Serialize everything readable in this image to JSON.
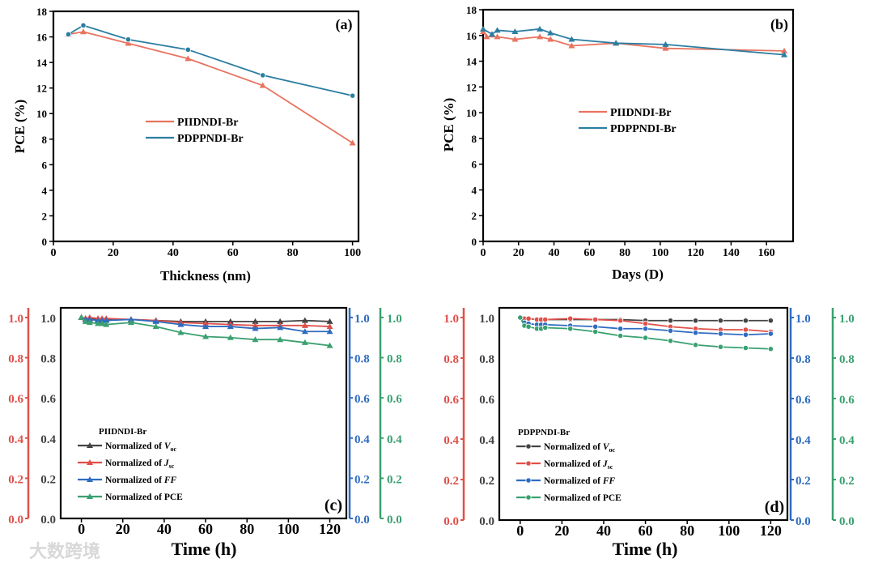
{
  "watermark": "大数跨境",
  "colors": {
    "pii_ab": "#e8735f",
    "pdpp_ab": "#2b7ea1",
    "voc": "#444444",
    "jsc": "#e0504a",
    "ff": "#2f6cc0",
    "pce": "#3aa070",
    "axis": "#000000"
  },
  "chart_data": [
    {
      "type": "line",
      "panel_label": "(a)",
      "xlabel": "Thickness (nm)",
      "ylabel": "PCE (%)",
      "xlim": [
        0,
        102
      ],
      "ylim": [
        0,
        18
      ],
      "xticks": [
        0,
        20,
        40,
        60,
        80,
        100
      ],
      "yticks": [
        0,
        2,
        4,
        6,
        8,
        10,
        12,
        14,
        16,
        18
      ],
      "legend_position": "center-left",
      "series": [
        {
          "name": "PIIDNDI-Br",
          "color_key": "pii_ab",
          "marker": "triangle",
          "x": [
            5,
            10,
            25,
            45,
            70,
            100
          ],
          "y": [
            16.2,
            16.4,
            15.5,
            14.3,
            12.2,
            7.7
          ]
        },
        {
          "name": "PDPPNDI-Br",
          "color_key": "pdpp_ab",
          "marker": "circle",
          "x": [
            5,
            10,
            25,
            45,
            70,
            100
          ],
          "y": [
            16.2,
            16.9,
            15.8,
            15.0,
            13.0,
            11.4
          ]
        }
      ]
    },
    {
      "type": "line",
      "panel_label": "(b)",
      "xlabel": "Days (D)",
      "ylabel": "PCE (%)",
      "xlim": [
        0,
        175
      ],
      "ylim": [
        0,
        18
      ],
      "xticks": [
        0,
        20,
        40,
        60,
        80,
        100,
        120,
        140,
        160
      ],
      "yticks": [
        0,
        2,
        4,
        6,
        8,
        10,
        12,
        14,
        16,
        18
      ],
      "legend_position": "center",
      "series": [
        {
          "name": "PIIDNDI-Br",
          "color_key": "pii_ab",
          "marker": "triangle",
          "x": [
            0,
            2,
            8,
            18,
            32,
            38,
            50,
            75,
            103,
            170
          ],
          "y": [
            16.3,
            15.9,
            15.9,
            15.7,
            15.9,
            15.7,
            15.2,
            15.4,
            15.0,
            14.8
          ]
        },
        {
          "name": "PDPPNDI-Br",
          "color_key": "pdpp_ab",
          "marker": "triangle",
          "x": [
            0,
            5,
            8,
            18,
            32,
            38,
            50,
            75,
            103,
            170
          ],
          "y": [
            16.5,
            16.1,
            16.4,
            16.3,
            16.5,
            16.2,
            15.7,
            15.4,
            15.3,
            14.5
          ]
        }
      ]
    },
    {
      "type": "line",
      "panel_label": "(c)",
      "xlabel": "Time (h)",
      "legend_title": "PIIDNDI-Br",
      "xlim": [
        -10,
        128
      ],
      "ylim": [
        0,
        1.048
      ],
      "xticks": [
        0,
        20,
        40,
        60,
        80,
        100,
        120
      ],
      "yticks": [
        0.0,
        0.2,
        0.4,
        0.6,
        0.8,
        1.0
      ],
      "ytick_labels": [
        "0.0",
        "0.2",
        "0.4",
        "0.6",
        "0.8",
        "1.0"
      ],
      "legend_position": "bottom-left",
      "x": [
        0,
        2,
        4,
        8,
        10,
        12,
        24,
        36,
        48,
        60,
        72,
        84,
        96,
        108,
        120
      ],
      "series": [
        {
          "prefix": "Normalized of ",
          "var": "V",
          "sub": "oc",
          "color_key": "voc",
          "marker": "triangle",
          "y": [
            1,
            0.995,
            0.995,
            0.99,
            0.99,
            0.99,
            0.99,
            0.985,
            0.98,
            0.98,
            0.98,
            0.98,
            0.98,
            0.985,
            0.98
          ]
        },
        {
          "prefix": "Normalized of ",
          "var": "J",
          "sub": "sc",
          "color_key": "jsc",
          "marker": "triangle",
          "y": [
            1,
            0.995,
            1.0,
            0.995,
            0.995,
            0.995,
            0.99,
            0.985,
            0.975,
            0.97,
            0.965,
            0.96,
            0.96,
            0.96,
            0.955
          ]
        },
        {
          "prefix": "Normalized of ",
          "var": "FF",
          "sub": "",
          "color_key": "ff",
          "marker": "triangle",
          "y": [
            1,
            0.99,
            0.99,
            0.985,
            0.985,
            0.985,
            0.99,
            0.98,
            0.965,
            0.955,
            0.955,
            0.945,
            0.95,
            0.93,
            0.93
          ]
        },
        {
          "prefix": "Normalized of PCE",
          "var": "",
          "sub": "",
          "color_key": "pce",
          "marker": "triangle",
          "y": [
            1,
            0.98,
            0.975,
            0.97,
            0.97,
            0.965,
            0.975,
            0.955,
            0.925,
            0.905,
            0.9,
            0.89,
            0.89,
            0.875,
            0.86
          ]
        }
      ]
    },
    {
      "type": "line",
      "panel_label": "(d)",
      "xlabel": "Time (h)",
      "legend_title": "PDPPNDI-Br",
      "xlim": [
        -10,
        128
      ],
      "ylim": [
        0,
        1.048
      ],
      "xticks": [
        0,
        20,
        40,
        60,
        80,
        100,
        120
      ],
      "yticks": [
        0.0,
        0.2,
        0.4,
        0.6,
        0.8,
        1.0
      ],
      "ytick_labels": [
        "0.0",
        "0.2",
        "0.4",
        "0.6",
        "0.8",
        "1.0"
      ],
      "legend_position": "bottom-left",
      "x": [
        0,
        2,
        4,
        8,
        10,
        12,
        24,
        36,
        48,
        60,
        72,
        84,
        96,
        108,
        120
      ],
      "series": [
        {
          "prefix": "Normalized of ",
          "var": "V",
          "sub": "oc",
          "color_key": "voc",
          "marker": "circle",
          "y": [
            1,
            0.995,
            0.995,
            0.99,
            0.99,
            0.99,
            0.99,
            0.99,
            0.99,
            0.985,
            0.985,
            0.985,
            0.985,
            0.985,
            0.985
          ]
        },
        {
          "prefix": "Normalized of ",
          "var": "J",
          "sub": "sc",
          "color_key": "jsc",
          "marker": "circle",
          "y": [
            1,
            0.995,
            0.995,
            0.99,
            0.99,
            0.99,
            0.995,
            0.99,
            0.985,
            0.97,
            0.955,
            0.945,
            0.94,
            0.94,
            0.93
          ]
        },
        {
          "prefix": "Normalized of ",
          "var": "FF",
          "sub": "",
          "color_key": "ff",
          "marker": "circle",
          "y": [
            1,
            0.975,
            0.97,
            0.965,
            0.965,
            0.965,
            0.96,
            0.955,
            0.945,
            0.945,
            0.935,
            0.925,
            0.92,
            0.915,
            0.92
          ]
        },
        {
          "prefix": "Normalized of PCE",
          "var": "",
          "sub": "",
          "color_key": "pce",
          "marker": "circle",
          "y": [
            1,
            0.96,
            0.955,
            0.945,
            0.945,
            0.95,
            0.945,
            0.93,
            0.91,
            0.9,
            0.885,
            0.865,
            0.855,
            0.85,
            0.845
          ]
        }
      ]
    }
  ]
}
